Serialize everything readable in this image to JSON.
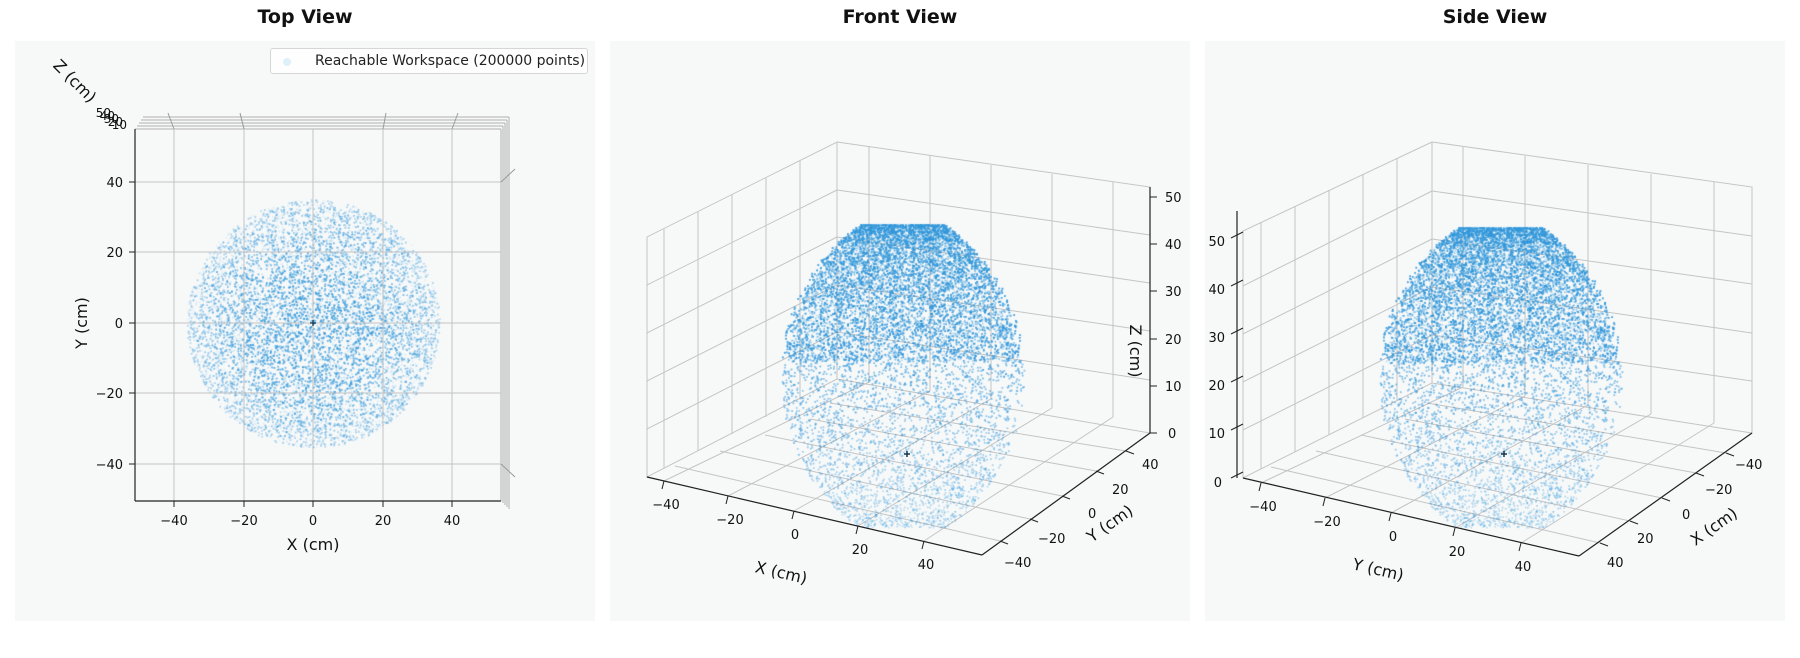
{
  "colors": {
    "points": "#3498db",
    "panel_bg": "#f7f9f9",
    "grid": "#b9b9b9"
  },
  "legend": {
    "label": "Reachable Workspace (200000 points)",
    "placement": "upper-right"
  },
  "chart_data": [
    {
      "type": "scatter",
      "projection": "3d",
      "title": "Top View",
      "xlabel": "X (cm)",
      "ylabel": "Y (cm)",
      "zlabel": "Z (cm)",
      "xticks": [
        "−40",
        "−20",
        "0",
        "20",
        "40"
      ],
      "yticks": [
        "−40",
        "−20",
        "0",
        "20",
        "40"
      ],
      "zticks": [
        "50",
        "40",
        "30",
        "20",
        "10"
      ],
      "xlim": [
        -50,
        50
      ],
      "ylim": [
        -50,
        50
      ],
      "zlim": [
        0,
        55
      ],
      "series": [
        {
          "point_count": 200000,
          "shape": "ellipsoid",
          "center": [
            0,
            0,
            20
          ],
          "radius_xy": 35,
          "z_range": [
            -5,
            56
          ]
        }
      ],
      "grid": true
    },
    {
      "type": "scatter",
      "projection": "3d",
      "title": "Front View",
      "xlabel": "X (cm)",
      "ylabel": "Y (cm)",
      "zlabel": "Z (cm)",
      "xticks": [
        "−40",
        "−20",
        "0",
        "20",
        "40"
      ],
      "yticks": [
        "−40",
        "−20",
        "0",
        "20",
        "40"
      ],
      "zticks": [
        "0",
        "10",
        "20",
        "30",
        "40",
        "50"
      ],
      "xlim": [
        -50,
        50
      ],
      "ylim": [
        -50,
        50
      ],
      "zlim": [
        0,
        55
      ],
      "grid": true
    },
    {
      "type": "scatter",
      "projection": "3d",
      "title": "Side View",
      "xlabel": "X (cm)",
      "ylabel": "Y (cm)",
      "zlabel": "",
      "xticks": [
        "40",
        "20",
        "0",
        "−20",
        "−40"
      ],
      "yticks": [
        "−40",
        "−20",
        "0",
        "20",
        "40"
      ],
      "zticks": [
        "0",
        "10",
        "20",
        "30",
        "40",
        "50"
      ],
      "xlim": [
        -50,
        50
      ],
      "ylim": [
        -50,
        50
      ],
      "zlim": [
        0,
        55
      ],
      "grid": true
    }
  ]
}
